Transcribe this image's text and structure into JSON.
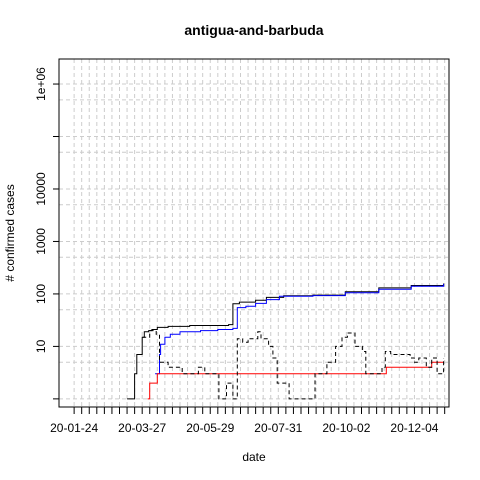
{
  "chart_data": {
    "type": "line",
    "title": "antigua-and-barbuda",
    "xlabel": "date",
    "ylabel": "# confirmed cases",
    "y_scale": "log",
    "grid": true,
    "legend": "none",
    "x_range": [
      "2020-01-10",
      "2021-01-05"
    ],
    "y_range": [
      0.7,
      3000000
    ],
    "x_tick_labels": [
      "20-01-24",
      "20-03-27",
      "20-05-29",
      "20-07-31",
      "20-10-02",
      "20-12-04"
    ],
    "x_tick_dates": [
      "2020-01-24",
      "2020-03-27",
      "2020-05-29",
      "2020-07-31",
      "2020-10-02",
      "2020-12-04"
    ],
    "y_tick_labels": [
      "10",
      "100",
      "1000",
      "10000",
      "1e+06"
    ],
    "y_tick_values": [
      10,
      100,
      1000,
      10000,
      1000000
    ],
    "series": [
      {
        "color": "#000000",
        "dash": "solid",
        "points": [
          [
            "2020-03-13",
            1
          ],
          [
            "2020-03-16",
            1
          ],
          [
            "2020-03-20",
            3
          ],
          [
            "2020-03-22",
            7
          ],
          [
            "2020-03-25",
            7
          ],
          [
            "2020-03-27",
            15
          ],
          [
            "2020-03-29",
            19
          ],
          [
            "2020-04-02",
            20
          ],
          [
            "2020-04-05",
            21
          ],
          [
            "2020-04-10",
            23
          ],
          [
            "2020-04-20",
            24
          ],
          [
            "2020-05-10",
            25
          ],
          [
            "2020-06-15",
            26
          ],
          [
            "2020-06-18",
            26
          ],
          [
            "2020-06-19",
            65
          ],
          [
            "2020-06-25",
            70
          ],
          [
            "2020-07-10",
            76
          ],
          [
            "2020-07-20",
            86
          ],
          [
            "2020-08-05",
            92
          ],
          [
            "2020-09-01",
            95
          ],
          [
            "2020-10-01",
            110
          ],
          [
            "2020-11-01",
            130
          ],
          [
            "2020-12-01",
            145
          ],
          [
            "2020-12-31",
            158
          ]
        ]
      },
      {
        "color": "#0000ff",
        "dash": "solid",
        "points": [
          [
            "2020-04-08",
            3
          ],
          [
            "2020-04-12",
            7
          ],
          [
            "2020-04-13",
            11
          ],
          [
            "2020-04-16",
            11
          ],
          [
            "2020-04-17",
            15
          ],
          [
            "2020-04-22",
            17
          ],
          [
            "2020-05-01",
            19
          ],
          [
            "2020-05-20",
            20
          ],
          [
            "2020-06-05",
            21
          ],
          [
            "2020-06-19",
            22
          ],
          [
            "2020-06-23",
            55
          ],
          [
            "2020-07-01",
            58
          ],
          [
            "2020-07-10",
            66
          ],
          [
            "2020-07-20",
            78
          ],
          [
            "2020-08-01",
            90
          ],
          [
            "2020-09-01",
            93
          ],
          [
            "2020-10-01",
            105
          ],
          [
            "2020-11-01",
            123
          ],
          [
            "2020-12-01",
            140
          ],
          [
            "2020-12-31",
            155
          ]
        ]
      },
      {
        "color": "#ff0000",
        "dash": "solid",
        "points": [
          [
            "2020-04-01",
            1
          ],
          [
            "2020-04-03",
            2
          ],
          [
            "2020-04-09",
            2
          ],
          [
            "2020-04-10",
            3
          ],
          [
            "2020-10-15",
            3
          ],
          [
            "2020-11-07",
            3
          ],
          [
            "2020-11-08",
            4
          ],
          [
            "2020-12-15",
            4
          ],
          [
            "2020-12-20",
            5
          ],
          [
            "2020-12-31",
            5
          ]
        ]
      },
      {
        "color": "#000000",
        "dash": "dashed",
        "points": [
          [
            "2020-03-27",
            15
          ],
          [
            "2020-04-03",
            20
          ],
          [
            "2020-04-09",
            17
          ],
          [
            "2020-04-12",
            5
          ],
          [
            "2020-04-20",
            4
          ],
          [
            "2020-05-03",
            3
          ],
          [
            "2020-05-10",
            3
          ],
          [
            "2020-05-18",
            4
          ],
          [
            "2020-05-24",
            3
          ],
          [
            "2020-06-02",
            3
          ],
          [
            "2020-06-06",
            1
          ],
          [
            "2020-06-13",
            2
          ],
          [
            "2020-06-19",
            1
          ],
          [
            "2020-06-23",
            14
          ],
          [
            "2020-06-28",
            12
          ],
          [
            "2020-07-03",
            14
          ],
          [
            "2020-07-12",
            19
          ],
          [
            "2020-07-15",
            14
          ],
          [
            "2020-07-22",
            10
          ],
          [
            "2020-07-26",
            6
          ],
          [
            "2020-07-30",
            2
          ],
          [
            "2020-08-07",
            2
          ],
          [
            "2020-08-10",
            1
          ],
          [
            "2020-08-28",
            1
          ],
          [
            "2020-09-03",
            3
          ],
          [
            "2020-09-14",
            5
          ],
          [
            "2020-09-22",
            10
          ],
          [
            "2020-09-28",
            15
          ],
          [
            "2020-10-03",
            18
          ],
          [
            "2020-10-10",
            10
          ],
          [
            "2020-10-17",
            8
          ],
          [
            "2020-10-20",
            3
          ],
          [
            "2020-10-26",
            3
          ],
          [
            "2020-11-04",
            4
          ],
          [
            "2020-11-07",
            8
          ],
          [
            "2020-11-12",
            7
          ],
          [
            "2020-11-24",
            7
          ],
          [
            "2020-11-30",
            6
          ],
          [
            "2020-12-04",
            5
          ],
          [
            "2020-12-08",
            6
          ],
          [
            "2020-12-15",
            4
          ],
          [
            "2020-12-20",
            6
          ],
          [
            "2020-12-25",
            3
          ],
          [
            "2020-12-31",
            6
          ]
        ]
      }
    ]
  }
}
